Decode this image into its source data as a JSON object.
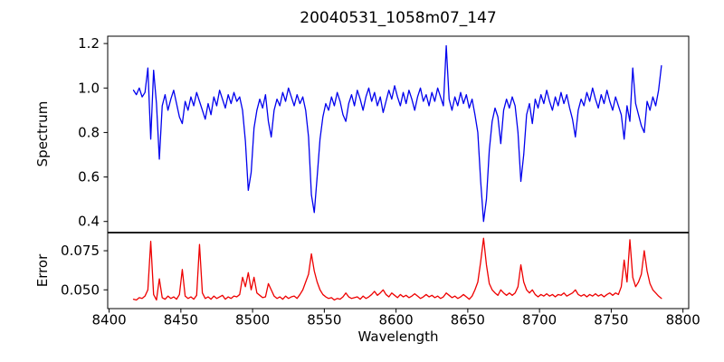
{
  "title": "20040531_1058m07_147",
  "chart_data": {
    "type": "line",
    "title": "20040531_1058m07_147",
    "xlabel": "Wavelength",
    "xlim": [
      8399,
      8804
    ],
    "xticks": [
      8400,
      8450,
      8500,
      8550,
      8600,
      8650,
      8700,
      8750,
      8800
    ],
    "x_start": 8417,
    "x_step": 2,
    "grid": false,
    "legend": "none",
    "subplots": [
      {
        "name": "spectrum",
        "ylabel": "Spectrum",
        "color": "#0000ee",
        "ylim": [
          0.35,
          1.233
        ],
        "ytick_values": [
          0.4,
          0.6,
          0.8,
          1.0,
          1.2
        ],
        "ytick_labels": [
          "0.4",
          "0.6",
          "0.8",
          "1.0",
          "1.2"
        ],
        "values": [
          0.99,
          0.97,
          1.0,
          0.96,
          0.98,
          1.09,
          0.77,
          1.08,
          0.93,
          0.68,
          0.92,
          0.97,
          0.9,
          0.95,
          0.99,
          0.93,
          0.87,
          0.84,
          0.94,
          0.9,
          0.96,
          0.92,
          0.98,
          0.94,
          0.9,
          0.86,
          0.93,
          0.88,
          0.96,
          0.92,
          0.99,
          0.95,
          0.91,
          0.97,
          0.93,
          0.98,
          0.94,
          0.96,
          0.9,
          0.76,
          0.54,
          0.62,
          0.82,
          0.9,
          0.95,
          0.91,
          0.97,
          0.85,
          0.78,
          0.9,
          0.95,
          0.92,
          0.98,
          0.94,
          1.0,
          0.96,
          0.92,
          0.97,
          0.93,
          0.96,
          0.9,
          0.78,
          0.52,
          0.44,
          0.6,
          0.77,
          0.87,
          0.93,
          0.9,
          0.96,
          0.92,
          0.98,
          0.94,
          0.88,
          0.85,
          0.93,
          0.97,
          0.92,
          0.99,
          0.95,
          0.9,
          0.96,
          1.0,
          0.94,
          0.98,
          0.92,
          0.96,
          0.89,
          0.94,
          0.99,
          0.95,
          1.01,
          0.96,
          0.92,
          0.98,
          0.93,
          0.99,
          0.95,
          0.9,
          0.96,
          1.0,
          0.94,
          0.97,
          0.92,
          0.98,
          0.94,
          1.0,
          0.96,
          0.92,
          1.19,
          0.95,
          0.9,
          0.96,
          0.92,
          0.98,
          0.93,
          0.97,
          0.91,
          0.95,
          0.88,
          0.8,
          0.58,
          0.4,
          0.5,
          0.72,
          0.85,
          0.91,
          0.87,
          0.75,
          0.9,
          0.95,
          0.91,
          0.96,
          0.92,
          0.8,
          0.58,
          0.7,
          0.88,
          0.93,
          0.84,
          0.95,
          0.91,
          0.97,
          0.93,
          0.99,
          0.94,
          0.9,
          0.96,
          0.92,
          0.98,
          0.93,
          0.97,
          0.91,
          0.86,
          0.78,
          0.9,
          0.95,
          0.92,
          0.98,
          0.94,
          1.0,
          0.95,
          0.91,
          0.97,
          0.93,
          0.99,
          0.94,
          0.9,
          0.96,
          0.92,
          0.88,
          0.77,
          0.92,
          0.85,
          1.09,
          0.93,
          0.88,
          0.83,
          0.8,
          0.94,
          0.9,
          0.96,
          0.92,
          0.99,
          1.1
        ]
      },
      {
        "name": "error",
        "ylabel": "Error",
        "color": "#ee0000",
        "ylim": [
          0.038,
          0.0866
        ],
        "ytick_values": [
          0.05,
          0.075
        ],
        "ytick_labels": [
          "0.050",
          "0.075"
        ],
        "values": [
          0.044,
          0.0435,
          0.045,
          0.0445,
          0.046,
          0.05,
          0.081,
          0.047,
          0.0435,
          0.057,
          0.045,
          0.044,
          0.046,
          0.0445,
          0.0455,
          0.044,
          0.047,
          0.063,
          0.046,
          0.0445,
          0.0455,
          0.044,
          0.0465,
          0.079,
          0.048,
          0.0445,
          0.0455,
          0.044,
          0.046,
          0.0445,
          0.0455,
          0.0465,
          0.044,
          0.0455,
          0.0445,
          0.046,
          0.0455,
          0.047,
          0.058,
          0.052,
          0.061,
          0.05,
          0.058,
          0.048,
          0.0465,
          0.045,
          0.0455,
          0.054,
          0.05,
          0.046,
          0.0445,
          0.0455,
          0.044,
          0.046,
          0.0445,
          0.0455,
          0.046,
          0.0445,
          0.047,
          0.05,
          0.055,
          0.06,
          0.073,
          0.062,
          0.055,
          0.05,
          0.047,
          0.0455,
          0.0445,
          0.045,
          0.0435,
          0.0445,
          0.044,
          0.0455,
          0.048,
          0.0455,
          0.0445,
          0.045,
          0.0455,
          0.044,
          0.046,
          0.0445,
          0.0455,
          0.047,
          0.049,
          0.0465,
          0.048,
          0.05,
          0.047,
          0.0455,
          0.048,
          0.0465,
          0.045,
          0.047,
          0.0455,
          0.0465,
          0.045,
          0.046,
          0.0475,
          0.046,
          0.0445,
          0.0455,
          0.047,
          0.0455,
          0.0465,
          0.045,
          0.046,
          0.0445,
          0.0455,
          0.048,
          0.0465,
          0.045,
          0.046,
          0.0445,
          0.0455,
          0.047,
          0.0455,
          0.044,
          0.046,
          0.05,
          0.055,
          0.068,
          0.083,
          0.066,
          0.054,
          0.05,
          0.048,
          0.0465,
          0.05,
          0.048,
          0.0465,
          0.048,
          0.0465,
          0.048,
          0.052,
          0.066,
          0.055,
          0.05,
          0.048,
          0.05,
          0.047,
          0.0455,
          0.047,
          0.046,
          0.0475,
          0.046,
          0.047,
          0.0455,
          0.047,
          0.0465,
          0.048,
          0.046,
          0.047,
          0.048,
          0.05,
          0.047,
          0.046,
          0.047,
          0.0455,
          0.047,
          0.046,
          0.0475,
          0.046,
          0.047,
          0.0455,
          0.047,
          0.048,
          0.0465,
          0.048,
          0.047,
          0.052,
          0.069,
          0.055,
          0.082,
          0.058,
          0.052,
          0.055,
          0.06,
          0.075,
          0.062,
          0.054,
          0.05,
          0.048,
          0.046,
          0.0445
        ]
      }
    ]
  }
}
